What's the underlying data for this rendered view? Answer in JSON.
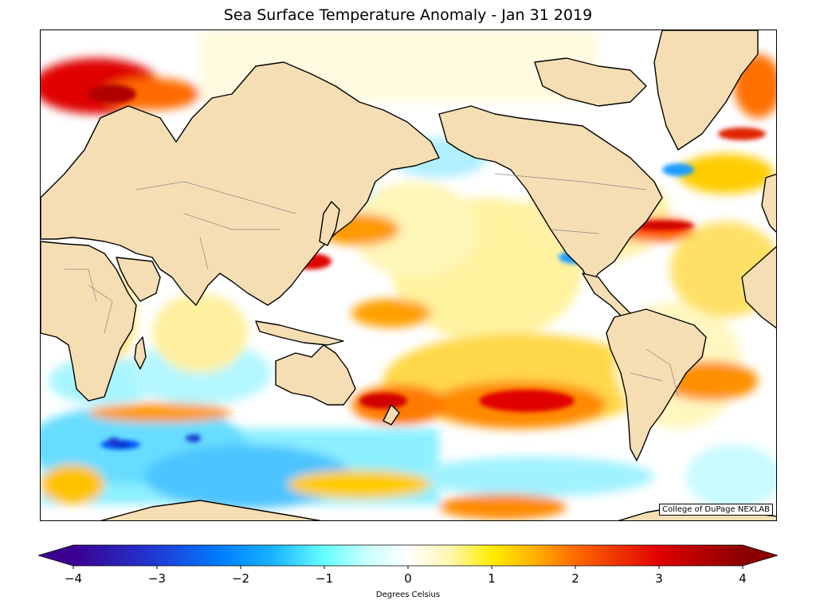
{
  "title": "Sea Surface Temperature Anomaly - Jan 31 2019",
  "credit": "College of DuPage NEXLAB",
  "colorbar": {
    "label": "Degrees Celsius",
    "min": -4,
    "max": 4,
    "ticks": [
      "−4",
      "−3",
      "−2",
      "−1",
      "0",
      "1",
      "2",
      "3",
      "4"
    ],
    "stops": [
      {
        "v": -4,
        "color": "#3b0091"
      },
      {
        "v": -3,
        "color": "#1f3bd6"
      },
      {
        "v": -2.2,
        "color": "#0080ff"
      },
      {
        "v": -1.6,
        "color": "#1ab5ff"
      },
      {
        "v": -1,
        "color": "#66ffff"
      },
      {
        "v": -0.5,
        "color": "#c8ffff"
      },
      {
        "v": 0,
        "color": "#ffffff"
      },
      {
        "v": 0.5,
        "color": "#fff6b0"
      },
      {
        "v": 1,
        "color": "#ffee00"
      },
      {
        "v": 1.5,
        "color": "#ffb300"
      },
      {
        "v": 2,
        "color": "#ff6a00"
      },
      {
        "v": 3,
        "color": "#e00000"
      },
      {
        "v": 4,
        "color": "#8a0000"
      }
    ]
  },
  "colors": {
    "land": "#f5deb3",
    "coast": "#000000",
    "borders": "#888888",
    "ocean_neutral": "#ffffff"
  }
}
